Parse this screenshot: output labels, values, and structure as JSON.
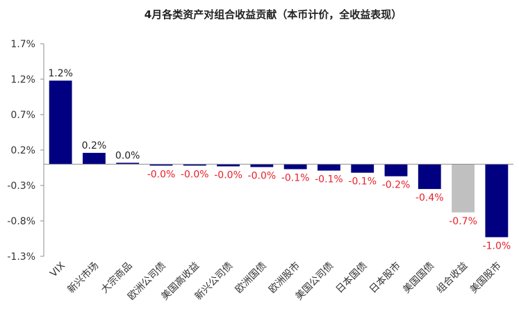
{
  "chart_data": {
    "type": "bar",
    "title": "4月各类资产对组合收益贡献（本币计价，全收益表现）",
    "xlabel": "",
    "ylabel": "",
    "ylim": [
      -1.3,
      1.7
    ],
    "yticks": [
      1.7,
      1.2,
      0.7,
      0.2,
      -0.3,
      -0.8,
      -1.3
    ],
    "ytick_labels": [
      "1.7%",
      "1.2%",
      "0.7%",
      "0.2%",
      "-0.3%",
      "-0.8%",
      "-1.3%"
    ],
    "categories": [
      "VIX",
      "新兴市场",
      "大宗商品",
      "欧洲公司债",
      "美国高收益",
      "新兴公司债",
      "欧洲国债",
      "欧洲股市",
      "美国公司债",
      "日本国债",
      "日本股市",
      "美国国债",
      "组合收益",
      "美国股市"
    ],
    "values": [
      1.18,
      0.16,
      0.02,
      -0.02,
      -0.02,
      -0.03,
      -0.04,
      -0.07,
      -0.09,
      -0.12,
      -0.17,
      -0.35,
      -0.68,
      -1.03
    ],
    "data_labels": [
      "1.2%",
      "0.2%",
      "0.0%",
      "-0.0%",
      "-0.0%",
      "-0.0%",
      "-0.0%",
      "-0.1%",
      "-0.1%",
      "-0.1%",
      "-0.2%",
      "-0.4%",
      "-0.7%",
      "-1.0%"
    ],
    "bar_colors": [
      "#000080",
      "#000080",
      "#000080",
      "#000080",
      "#000080",
      "#000080",
      "#000080",
      "#000080",
      "#000080",
      "#000080",
      "#000080",
      "#000080",
      "#c0c0c0",
      "#000080"
    ],
    "label_colors": {
      "positive": "#222222",
      "negative": "#e8202a"
    },
    "grid": false,
    "legend": "none"
  }
}
